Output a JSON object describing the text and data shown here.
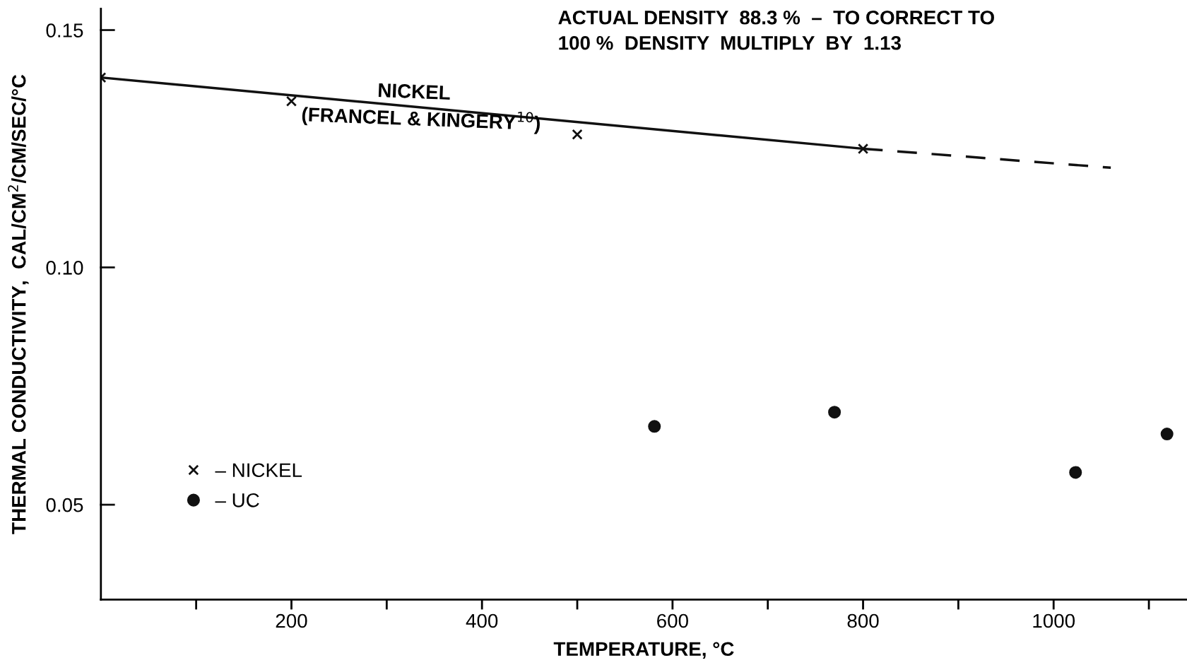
{
  "chart_data": {
    "type": "scatter",
    "xlabel": "TEMPERATURE, °C",
    "ylabel": "THERMAL CONDUCTIVITY,  CAL/CM$^{2}$/CM/SEC/°C",
    "series": [
      {
        "name": "– NICKEL",
        "marker": "cross",
        "color": "#111111",
        "x": [
          0,
          200,
          500,
          800
        ],
        "values": [
          0.14,
          0.135,
          0.128,
          0.125
        ]
      },
      {
        "name": "– UC",
        "marker": "circle",
        "color": "#111111",
        "x": [
          581,
          770,
          1023,
          1119
        ],
        "values": [
          0.0665,
          0.0695,
          0.0568,
          0.0649
        ]
      },
      {
        "type": "line",
        "line_style": "solid",
        "marker": "none",
        "color": "#111111",
        "x": [
          0,
          800
        ],
        "values": [
          0.14,
          0.125
        ]
      },
      {
        "type": "line",
        "line_style": "dashed",
        "marker": "none",
        "color": "#111111",
        "x": [
          800,
          1060
        ],
        "values": [
          0.125,
          0.121
        ]
      }
    ],
    "xlim": [
      0,
      1140
    ],
    "xticks": [
      {
        "value": 100,
        "label": null
      },
      200,
      {
        "value": 300,
        "label": null
      },
      400,
      {
        "value": 500,
        "label": null
      },
      600,
      {
        "value": 700,
        "label": null
      },
      800,
      {
        "value": 900,
        "label": null
      },
      1000,
      {
        "value": 1100,
        "label": null
      }
    ],
    "ylim": [
      0.03,
      0.1545
    ],
    "yticks": [
      0.05,
      {
        "value": 0.1,
        "label": "0.10"
      },
      0.15
    ],
    "grid": false,
    "legend": "bottom left",
    "annotations": [
      "NICKEL",
      "(FRANCEL & KINGERY$^{10}$)",
      "ACTUAL DENSITY  88.3 %  –  TO CORRECT TO\n100 %  DENSITY  MULTIPLY  BY  1.13"
    ]
  }
}
